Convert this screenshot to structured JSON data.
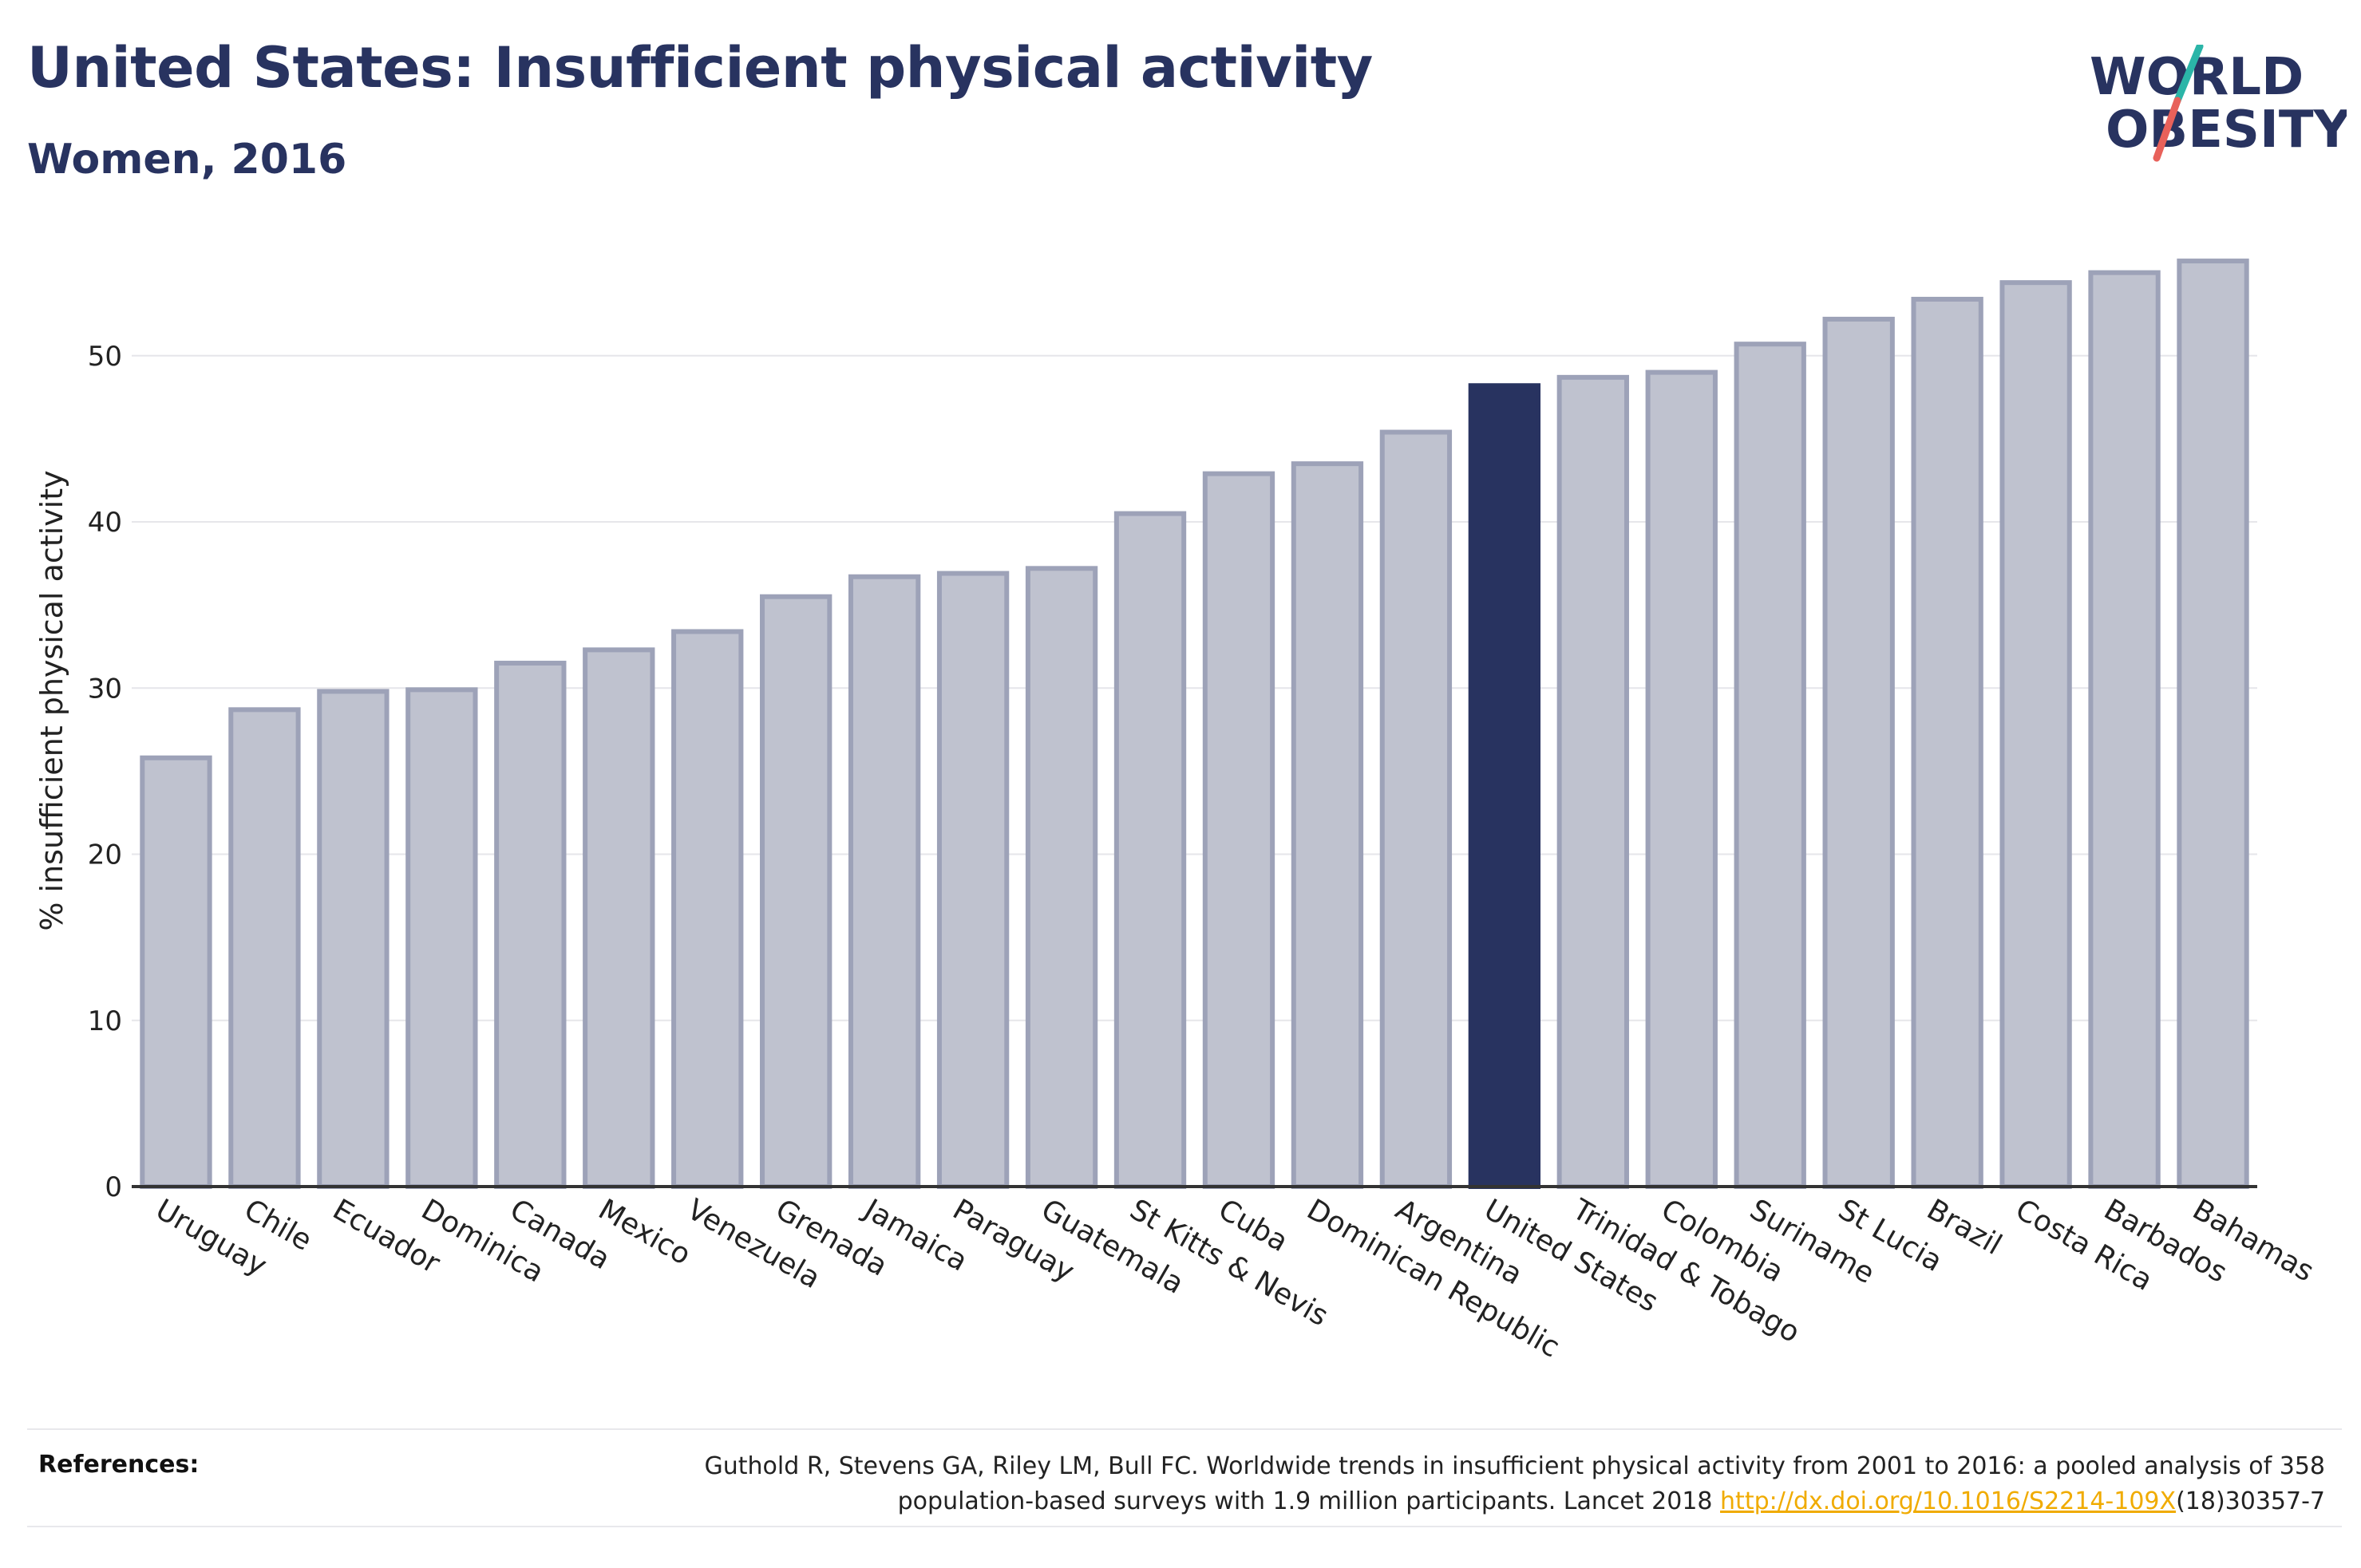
{
  "header": {
    "title": "United States: Insufficient physical activity",
    "subtitle": "Women, 2016"
  },
  "logo": {
    "line1": "WORLD",
    "line2": "OBESITY",
    "colors": {
      "text": "#283360",
      "slash_top": "#2bb5a8",
      "slash_bottom": "#e8615a"
    }
  },
  "chart_data": {
    "type": "bar",
    "ylabel": "% insufficient physical activity",
    "ylim": [
      0,
      57
    ],
    "yticks": [
      0,
      10,
      20,
      30,
      40,
      50
    ],
    "grid": true,
    "highlight": "United States",
    "colors": {
      "bar": "#bfc2cf",
      "bar_edge": "#9da2b8",
      "highlight": "#283360",
      "grid": "#e6e6ea",
      "axis": "#333333"
    },
    "categories": [
      "Uruguay",
      "Chile",
      "Ecuador",
      "Dominica",
      "Canada",
      "Mexico",
      "Venezuela",
      "Grenada",
      "Jamaica",
      "Paraguay",
      "Guatemala",
      "St Kitts & Nevis",
      "Cuba",
      "Dominican Republic",
      "Argentina",
      "United States",
      "Trinidad & Tobago",
      "Colombia",
      "Suriname",
      "St Lucia",
      "Brazil",
      "Costa Rica",
      "Barbados",
      "Bahamas"
    ],
    "values": [
      25.8,
      28.7,
      29.8,
      29.9,
      31.5,
      32.3,
      33.4,
      35.5,
      36.7,
      36.9,
      37.2,
      40.5,
      42.9,
      43.5,
      45.4,
      48.2,
      48.7,
      49.0,
      50.7,
      52.2,
      53.4,
      54.4,
      55.0,
      55.7
    ]
  },
  "references": {
    "label": "References:",
    "text_line1": "Guthold R, Stevens GA, Riley LM, Bull FC. Worldwide trends in insufficient physical activity from 2001 to 2016: a pooled analysis of 358",
    "text_line2_pre": "population-based surveys with 1.9 million participants. Lancet 2018 ",
    "link": "http://dx.doi.org/10.1016/S2214-109X",
    "text_line2_post": "(18)30357-7"
  }
}
